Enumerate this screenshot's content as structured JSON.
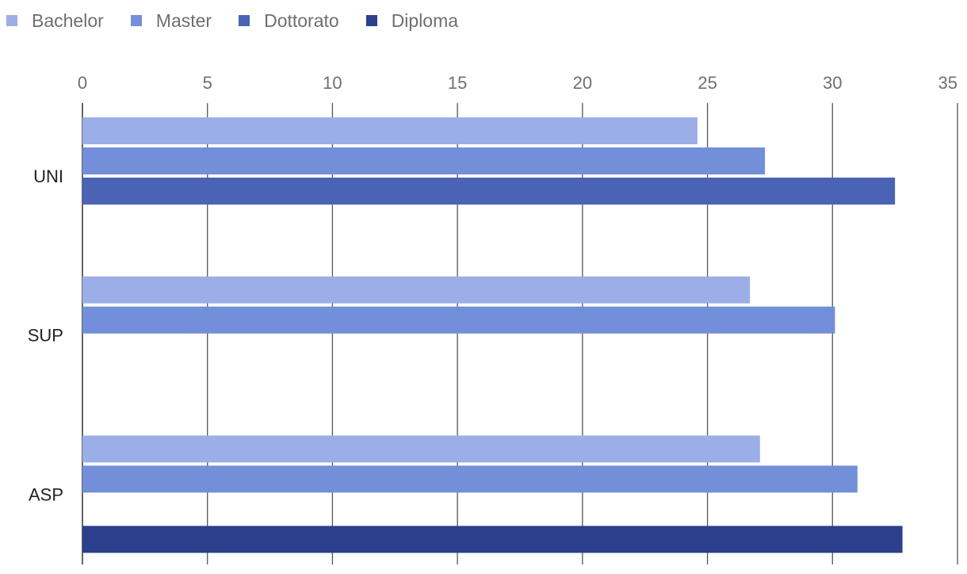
{
  "chart_data": {
    "type": "bar",
    "orientation": "horizontal",
    "categories": [
      "UNI",
      "SUP",
      "ASP"
    ],
    "series": [
      {
        "name": "Bachelor",
        "color": "#9caee8",
        "values": [
          24.6,
          26.7,
          27.1
        ]
      },
      {
        "name": "Master",
        "color": "#738fd9",
        "values": [
          27.3,
          30.1,
          31.0
        ]
      },
      {
        "name": "Dottorato",
        "color": "#4a63b4",
        "values": [
          32.5,
          null,
          null
        ]
      },
      {
        "name": "Diploma",
        "color": "#2b3f8d",
        "values": [
          null,
          null,
          32.8
        ]
      }
    ],
    "xlim": [
      0,
      35
    ],
    "x_ticks": [
      0,
      5,
      10,
      15,
      20,
      25,
      30,
      35
    ],
    "grid": true,
    "legend_position": "top-left",
    "axis_position": "top"
  }
}
